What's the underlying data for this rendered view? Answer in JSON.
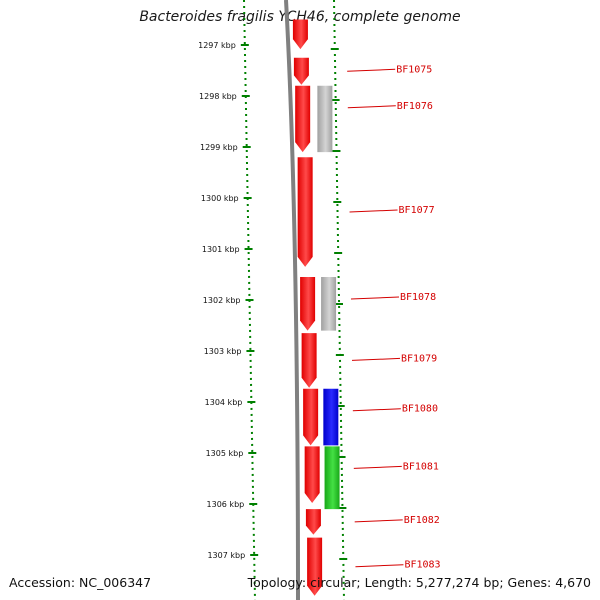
{
  "title": "Bacteroides fragilis YCH46, complete genome",
  "accession": "Accession: NC_006347",
  "summary": "Topology: circular; Length: 5,277,274 bp; Genes: 4,670",
  "colors": {
    "forward_strand": "#ff0000",
    "reverse_strand_grey": "#b8b8b8",
    "blue_gene": "#0000ee",
    "green_gene": "#22cc22",
    "tick_green": "#008000",
    "backbone": "#808080",
    "label_red": "#d40000"
  },
  "scale": {
    "unit": "kbp",
    "ticks": [
      {
        "value": 1297,
        "label": "1297 kbp"
      },
      {
        "value": 1298,
        "label": "1298 kbp"
      },
      {
        "value": 1299,
        "label": "1299 kbp"
      },
      {
        "value": 1300,
        "label": "1300 kbp"
      },
      {
        "value": 1301,
        "label": "1301 kbp"
      },
      {
        "value": 1302,
        "label": "1302 kbp"
      },
      {
        "value": 1303,
        "label": "1303 kbp"
      },
      {
        "value": 1304,
        "label": "1304 kbp"
      },
      {
        "value": 1305,
        "label": "1305 kbp"
      },
      {
        "value": 1306,
        "label": "1306 kbp"
      },
      {
        "value": 1307,
        "label": "1307 kbp"
      }
    ]
  },
  "genes": [
    {
      "label": "",
      "start": 1296.5,
      "end": 1297.08,
      "strand": "forward",
      "color": "red"
    },
    {
      "label": "BF1075",
      "start": 1297.25,
      "end": 1297.78,
      "strand": "forward",
      "color": "red"
    },
    {
      "label": "BF1076",
      "start": 1297.8,
      "end": 1299.1,
      "strand": "reverse",
      "color": "grey"
    },
    {
      "label": "",
      "start": 1297.8,
      "end": 1299.1,
      "strand": "forward",
      "color": "red"
    },
    {
      "label": "BF1077",
      "start": 1299.2,
      "end": 1301.35,
      "strand": "forward",
      "color": "red"
    },
    {
      "label": "BF1078",
      "start": 1301.55,
      "end": 1302.6,
      "strand": "reverse",
      "color": "grey"
    },
    {
      "label": "",
      "start": 1301.55,
      "end": 1302.6,
      "strand": "forward",
      "color": "red"
    },
    {
      "label": "BF1079",
      "start": 1302.65,
      "end": 1303.72,
      "strand": "forward",
      "color": "red"
    },
    {
      "label": "BF1080",
      "start": 1303.74,
      "end": 1304.85,
      "strand": "reverse",
      "color": "blue"
    },
    {
      "label": "",
      "start": 1303.74,
      "end": 1304.85,
      "strand": "forward",
      "color": "red"
    },
    {
      "label": "BF1081",
      "start": 1304.87,
      "end": 1306.1,
      "strand": "reverse",
      "color": "green"
    },
    {
      "label": "",
      "start": 1304.87,
      "end": 1305.98,
      "strand": "forward",
      "color": "red"
    },
    {
      "label": "BF1082",
      "start": 1306.1,
      "end": 1306.6,
      "strand": "forward",
      "color": "red"
    },
    {
      "label": "BF1083",
      "start": 1306.66,
      "end": 1307.8,
      "strand": "forward",
      "color": "red"
    }
  ]
}
